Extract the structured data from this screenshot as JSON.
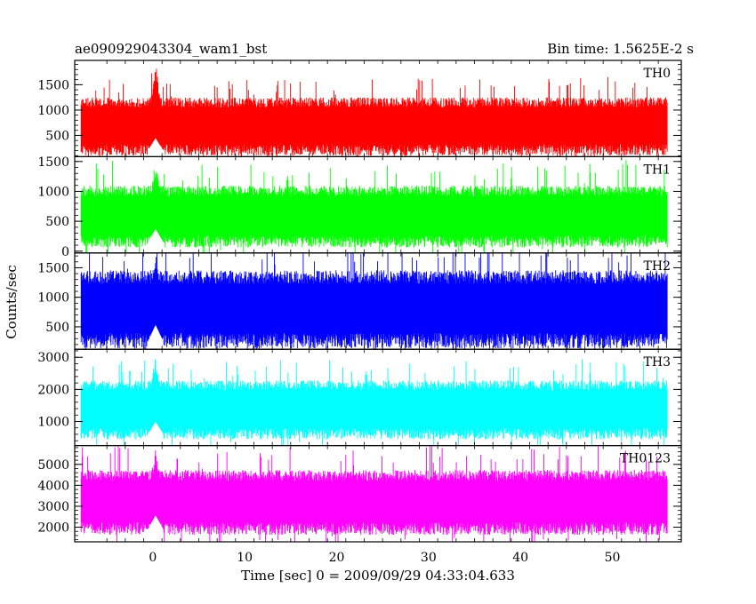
{
  "header": {
    "left_title": "ae090929043304_wam1_bst",
    "right_title": "Bin time: 1.5625E-2 s"
  },
  "chart_data": {
    "type": "line",
    "xlabel": "Time [sec] 0 = 2009/09/29 04:33:04.633",
    "ylabel": "Counts/sec",
    "xlim": [
      -8.5,
      57.5
    ],
    "x_ticks": [
      0,
      10,
      20,
      30,
      40,
      50
    ],
    "x_data_range": [
      -7.8,
      56.0
    ],
    "bin_time_s": 0.015625,
    "grid": false,
    "panels": [
      {
        "name": "TH0",
        "color": "#ff0000",
        "ylim": [
          80,
          1980
        ],
        "y_ticks": [
          500,
          1000,
          1500
        ],
        "typical_low": 200,
        "typical_high": 1200,
        "burst_peak": 1980,
        "burst_time": 0.3
      },
      {
        "name": "TH1",
        "color": "#00ff00",
        "ylim": [
          -30,
          1580
        ],
        "y_ticks": [
          0,
          500,
          1000,
          1500
        ],
        "typical_low": 150,
        "typical_high": 1050,
        "burst_peak": 1550,
        "burst_time": 0.3
      },
      {
        "name": "TH2",
        "color": "#0000ff",
        "ylim": [
          120,
          1750
        ],
        "y_ticks": [
          500,
          1000,
          1500
        ],
        "typical_low": 250,
        "typical_high": 1400,
        "burst_peak": 1750,
        "burst_time": 0.3
      },
      {
        "name": "TH3",
        "color": "#00ffff",
        "ylim": [
          250,
          3250
        ],
        "y_ticks": [
          1000,
          2000,
          3000
        ],
        "typical_low": 600,
        "typical_high": 2200,
        "burst_peak": 3100,
        "burst_time": 0.3
      },
      {
        "name": "TH0123",
        "color": "#ff00ff",
        "ylim": [
          1300,
          5900
        ],
        "y_ticks": [
          2000,
          3000,
          4000,
          5000
        ],
        "typical_low": 1900,
        "typical_high": 4600,
        "burst_peak": 5800,
        "burst_time": 0.3
      }
    ]
  }
}
